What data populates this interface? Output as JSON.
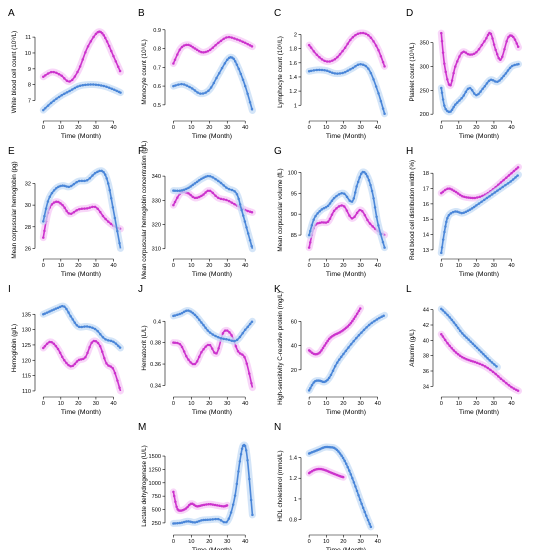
{
  "figure": {
    "colors": {
      "series_magenta": "#cc33cc",
      "series_blue": "#4a86d8",
      "band_magenta": "#f6c8f6",
      "band_blue": "#c5dcf6"
    }
  },
  "chart_data": [
    {
      "panel": "A",
      "type": "line",
      "ylabel": "White blood cell count (10⁹/L)",
      "xlabel": "Time (Month)",
      "xlim": [
        -3,
        46
      ],
      "ylim": [
        5.9,
        11.7
      ],
      "xticks": [
        0,
        10,
        20,
        30,
        40
      ],
      "yticks": [
        7,
        8,
        9,
        10,
        11
      ],
      "series": [
        {
          "color": "#cc33cc",
          "x": [
            0,
            5,
            10,
            15,
            20,
            25,
            30,
            33,
            36,
            40,
            44
          ],
          "y": [
            8.5,
            8.8,
            8.6,
            8.2,
            8.9,
            10.3,
            11.2,
            11.3,
            10.8,
            9.8,
            8.8
          ]
        },
        {
          "color": "#4a86d8",
          "x": [
            0,
            5,
            10,
            15,
            20,
            25,
            30,
            35,
            40,
            44
          ],
          "y": [
            6.4,
            6.9,
            7.3,
            7.6,
            7.9,
            8.0,
            8.0,
            7.9,
            7.7,
            7.5
          ]
        }
      ]
    },
    {
      "panel": "B",
      "type": "line",
      "ylabel": "Monocyte count (10⁹/L)",
      "xlabel": "Time (Month)",
      "xlim": [
        -3,
        46
      ],
      "ylim": [
        0.43,
        0.92
      ],
      "xticks": [
        0,
        10,
        20,
        30,
        40
      ],
      "yticks": [
        0.5,
        0.6,
        0.7,
        0.8,
        0.9
      ],
      "series": [
        {
          "color": "#cc33cc",
          "x": [
            0,
            4,
            8,
            12,
            16,
            20,
            25,
            30,
            35,
            40,
            44
          ],
          "y": [
            0.72,
            0.8,
            0.82,
            0.8,
            0.78,
            0.79,
            0.83,
            0.86,
            0.85,
            0.83,
            0.81
          ]
        },
        {
          "color": "#4a86d8",
          "x": [
            0,
            5,
            10,
            15,
            20,
            25,
            30,
            33,
            36,
            40,
            44
          ],
          "y": [
            0.6,
            0.61,
            0.59,
            0.56,
            0.58,
            0.66,
            0.74,
            0.75,
            0.7,
            0.6,
            0.47
          ]
        }
      ]
    },
    {
      "panel": "C",
      "type": "line",
      "ylabel": "Lymphocyte count (10⁹/L)",
      "xlabel": "Time (Month)",
      "xlim": [
        -3,
        46
      ],
      "ylim": [
        0.82,
        2.12
      ],
      "xticks": [
        0,
        10,
        20,
        30,
        40
      ],
      "yticks": [
        1.0,
        1.2,
        1.4,
        1.6,
        1.8,
        2.0
      ],
      "series": [
        {
          "color": "#cc33cc",
          "x": [
            0,
            5,
            10,
            15,
            20,
            25,
            30,
            35,
            40,
            44
          ],
          "y": [
            1.85,
            1.7,
            1.62,
            1.65,
            1.78,
            1.95,
            2.02,
            1.98,
            1.8,
            1.55
          ]
        },
        {
          "color": "#4a86d8",
          "x": [
            0,
            5,
            10,
            15,
            20,
            25,
            30,
            35,
            40,
            44
          ],
          "y": [
            1.48,
            1.5,
            1.49,
            1.45,
            1.46,
            1.52,
            1.58,
            1.5,
            1.2,
            0.88
          ]
        }
      ]
    },
    {
      "panel": "D",
      "type": "line",
      "ylabel": "Platelet count (10⁹/L)",
      "xlabel": "Time (Month)",
      "xlim": [
        -3,
        46
      ],
      "ylim": [
        192,
        385
      ],
      "xticks": [
        0,
        10,
        20,
        30,
        40
      ],
      "yticks": [
        200,
        250,
        300,
        350
      ],
      "series": [
        {
          "color": "#cc33cc",
          "x": [
            0,
            2,
            5,
            8,
            12,
            16,
            20,
            25,
            28,
            31,
            34,
            38,
            41,
            44
          ],
          "y": [
            370,
            300,
            260,
            300,
            330,
            325,
            330,
            355,
            370,
            335,
            315,
            360,
            362,
            340
          ]
        },
        {
          "color": "#4a86d8",
          "x": [
            0,
            2,
            5,
            8,
            12,
            16,
            20,
            24,
            28,
            32,
            36,
            40,
            44
          ],
          "y": [
            255,
            215,
            205,
            220,
            235,
            255,
            240,
            255,
            272,
            268,
            282,
            300,
            305
          ]
        }
      ]
    },
    {
      "panel": "E",
      "type": "line",
      "ylabel": "Mean corpuscular hemoglobin (pg)",
      "xlabel": "Time (Month)",
      "xlim": [
        -3,
        46
      ],
      "ylim": [
        25.3,
        33.8
      ],
      "xticks": [
        0,
        10,
        20,
        30,
        40
      ],
      "yticks": [
        26,
        28,
        30,
        32
      ],
      "series": [
        {
          "color": "#cc33cc",
          "x": [
            0,
            3,
            7,
            11,
            15,
            20,
            25,
            30,
            35,
            40,
            44
          ],
          "y": [
            27.0,
            29.5,
            30.3,
            30.0,
            29.2,
            29.6,
            29.7,
            29.8,
            28.8,
            28.1,
            27.8
          ]
        },
        {
          "color": "#4a86d8",
          "x": [
            0,
            3,
            7,
            11,
            15,
            20,
            25,
            30,
            34,
            37,
            40,
            44
          ],
          "y": [
            28.5,
            30.5,
            31.5,
            31.8,
            31.7,
            32.2,
            32.3,
            33.0,
            33.1,
            32.0,
            29.5,
            26.0
          ]
        }
      ]
    },
    {
      "panel": "F",
      "type": "line",
      "ylabel": "Mean corpuscular hemoglobin concentration (g/L)",
      "xlabel": "Time (Month)",
      "xlim": [
        -3,
        46
      ],
      "ylim": [
        307,
        345
      ],
      "xticks": [
        0,
        10,
        20,
        30,
        40
      ],
      "yticks": [
        310,
        320,
        330,
        340
      ],
      "series": [
        {
          "color": "#cc33cc",
          "x": [
            0,
            4,
            8,
            12,
            16,
            20,
            25,
            30,
            35,
            40,
            44
          ],
          "y": [
            328,
            333,
            333,
            331,
            332,
            334,
            331,
            330,
            328,
            326,
            325
          ]
        },
        {
          "color": "#4a86d8",
          "x": [
            0,
            4,
            8,
            12,
            16,
            20,
            25,
            30,
            35,
            38,
            41,
            44
          ],
          "y": [
            334,
            334,
            335,
            337,
            339,
            340,
            338,
            335,
            333,
            326,
            318,
            310
          ]
        }
      ]
    },
    {
      "panel": "G",
      "type": "line",
      "ylabel": "Mean corpuscular volume (fL)",
      "xlabel": "Time (Month)",
      "xlim": [
        -3,
        46
      ],
      "ylim": [
        80,
        102
      ],
      "xticks": [
        0,
        10,
        20,
        30,
        40
      ],
      "yticks": [
        85,
        90,
        95,
        100
      ],
      "series": [
        {
          "color": "#cc33cc",
          "x": [
            0,
            3,
            7,
            11,
            15,
            20,
            25,
            30,
            35,
            40,
            44
          ],
          "y": [
            82.0,
            87.0,
            88.0,
            88.2,
            91.0,
            92.0,
            89.0,
            91.0,
            88.0,
            86.0,
            85.0
          ]
        },
        {
          "color": "#4a86d8",
          "x": [
            0,
            3,
            7,
            11,
            15,
            20,
            25,
            28,
            31,
            34,
            37,
            40,
            44
          ],
          "y": [
            85.0,
            89.0,
            91.0,
            92.0,
            94.0,
            95.0,
            93.0,
            97.0,
            100.0,
            99.0,
            95.0,
            88.0,
            82.0
          ]
        }
      ]
    },
    {
      "panel": "H",
      "type": "line",
      "ylabel": "Red blood cell distribution width (%)",
      "xlabel": "Time (Month)",
      "xlim": [
        -3,
        46
      ],
      "ylim": [
        12.6,
        18.6
      ],
      "xticks": [
        0,
        10,
        20,
        30,
        40
      ],
      "yticks": [
        13,
        14,
        15,
        16,
        17,
        18
      ],
      "series": [
        {
          "color": "#cc33cc",
          "x": [
            0,
            4,
            8,
            12,
            16,
            20,
            25,
            30,
            35,
            40,
            44
          ],
          "y": [
            16.7,
            17.0,
            16.8,
            16.5,
            16.4,
            16.4,
            16.6,
            17.0,
            17.5,
            18.0,
            18.4
          ]
        },
        {
          "color": "#4a86d8",
          "x": [
            0,
            2,
            4,
            8,
            12,
            16,
            20,
            25,
            30,
            35,
            40,
            44
          ],
          "y": [
            12.8,
            14.3,
            15.2,
            15.5,
            15.4,
            15.6,
            15.9,
            16.3,
            16.7,
            17.1,
            17.5,
            17.9
          ]
        }
      ]
    },
    {
      "panel": "I",
      "type": "line",
      "ylabel": "Hemoglobin (g/L)",
      "xlabel": "Time (Month)",
      "xlim": [
        -3,
        46
      ],
      "ylim": [
        109,
        139
      ],
      "xticks": [
        0,
        10,
        20,
        30,
        40
      ],
      "yticks": [
        110,
        115,
        120,
        125,
        130,
        135
      ],
      "series": [
        {
          "color": "#cc33cc",
          "x": [
            0,
            4,
            8,
            12,
            16,
            20,
            24,
            28,
            32,
            36,
            40,
            44
          ],
          "y": [
            124.0,
            126.0,
            124.0,
            120.0,
            118.0,
            120.0,
            121.0,
            126.0,
            125.0,
            119.0,
            117.0,
            110.0
          ]
        },
        {
          "color": "#4a86d8",
          "x": [
            0,
            4,
            8,
            12,
            16,
            20,
            25,
            30,
            35,
            40,
            44
          ],
          "y": [
            135.0,
            136.0,
            137.0,
            137.5,
            134.0,
            131.0,
            131.0,
            130.0,
            127.0,
            126.0,
            124.0
          ]
        }
      ]
    },
    {
      "panel": "J",
      "type": "line",
      "ylabel": "Hematocrit (L/L)",
      "xlabel": "Time (Month)",
      "xlim": [
        -3,
        46
      ],
      "ylim": [
        0.332,
        0.418
      ],
      "xticks": [
        0,
        10,
        20,
        30,
        40
      ],
      "yticks": [
        0.34,
        0.36,
        0.38,
        0.4
      ],
      "series": [
        {
          "color": "#cc33cc",
          "x": [
            0,
            4,
            8,
            12,
            16,
            20,
            24,
            28,
            32,
            36,
            40,
            44
          ],
          "y": [
            0.38,
            0.378,
            0.365,
            0.36,
            0.372,
            0.378,
            0.37,
            0.39,
            0.388,
            0.372,
            0.365,
            0.338
          ]
        },
        {
          "color": "#4a86d8",
          "x": [
            0,
            4,
            8,
            12,
            16,
            20,
            25,
            30,
            35,
            40,
            44
          ],
          "y": [
            0.405,
            0.407,
            0.41,
            0.406,
            0.398,
            0.39,
            0.385,
            0.383,
            0.382,
            0.392,
            0.4
          ]
        }
      ]
    },
    {
      "panel": "K",
      "type": "line",
      "ylabel": "High-sensitivity C-reactive protein (mg/L)",
      "xlabel": "Time (Month)",
      "xlim": [
        -3,
        46
      ],
      "ylim": [
        0,
        76
      ],
      "xticks": [
        0,
        10,
        20,
        30,
        40
      ],
      "yticks": [
        20,
        40,
        60
      ],
      "series": [
        {
          "color": "#cc33cc",
          "x": [
            0,
            3,
            6,
            9,
            12,
            15,
            18,
            21,
            24,
            27,
            30
          ],
          "y": [
            36.0,
            33.0,
            34.0,
            40.0,
            46.0,
            49.0,
            51.0,
            54.0,
            58.0,
            64.0,
            71.0
          ]
        },
        {
          "color": "#4a86d8",
          "x": [
            0,
            3,
            6,
            9,
            12,
            16,
            20,
            25,
            30,
            35,
            40,
            44
          ],
          "y": [
            3.0,
            10.0,
            11.0,
            10.0,
            14.0,
            25.0,
            33.0,
            42.0,
            50.0,
            57.0,
            62.0,
            65.0
          ]
        }
      ]
    },
    {
      "panel": "L",
      "type": "line",
      "ylabel": "Albumin (g/L)",
      "xlabel": "Time (Month)",
      "xlim": [
        -3,
        46
      ],
      "ylim": [
        33.0,
        45.0
      ],
      "xticks": [
        0,
        10,
        20,
        30,
        40
      ],
      "yticks": [
        34,
        36,
        38,
        40,
        42,
        44
      ],
      "series": [
        {
          "color": "#cc33cc",
          "x": [
            0,
            4,
            8,
            12,
            16,
            20,
            25,
            30,
            35,
            40,
            44
          ],
          "y": [
            40.8,
            39.5,
            38.5,
            37.8,
            37.4,
            37.1,
            36.6,
            35.8,
            34.8,
            33.9,
            33.4
          ]
        },
        {
          "color": "#4a86d8",
          "x": [
            0,
            4,
            8,
            12,
            16,
            20,
            24,
            28,
            32
          ],
          "y": [
            44.1,
            43.2,
            42.1,
            40.9,
            40.0,
            39.1,
            38.2,
            37.3,
            36.5
          ]
        }
      ]
    },
    {
      "panel": "M",
      "type": "line",
      "ylabel": "Lactate dehydrogenase (U/L)",
      "xlabel": "Time (Month)",
      "xlim": [
        -3,
        46
      ],
      "ylim": [
        80,
        1800
      ],
      "xticks": [
        0,
        10,
        20,
        30,
        40
      ],
      "yticks": [
        250,
        500,
        750,
        1000,
        1250,
        1500
      ],
      "series": [
        {
          "color": "#cc33cc",
          "x": [
            0,
            2,
            4,
            7,
            10,
            13,
            16,
            20,
            24,
            28,
            30
          ],
          "y": [
            830,
            530,
            480,
            520,
            610,
            560,
            580,
            600,
            580,
            560,
            580
          ]
        },
        {
          "color": "#4a86d8",
          "x": [
            0,
            4,
            8,
            12,
            16,
            20,
            25,
            30,
            34,
            37,
            39,
            41,
            44
          ],
          "y": [
            240,
            250,
            280,
            260,
            300,
            310,
            320,
            280,
            700,
            1400,
            1700,
            1500,
            400
          ]
        }
      ]
    },
    {
      "panel": "N",
      "type": "line",
      "ylabel": "HDL cholesterol (mmol/L)",
      "xlabel": "Time (Month)",
      "xlim": [
        -3,
        46
      ],
      "ylim": [
        0.68,
        1.57
      ],
      "xticks": [
        0,
        10,
        20,
        30,
        40
      ],
      "yticks": [
        0.8,
        1.0,
        1.2,
        1.4
      ],
      "series": [
        {
          "color": "#cc33cc",
          "x": [
            0,
            3,
            6,
            9,
            12,
            15,
            18,
            20
          ],
          "y": [
            1.25,
            1.28,
            1.29,
            1.28,
            1.26,
            1.24,
            1.22,
            1.21
          ]
        },
        {
          "color": "#4a86d8",
          "x": [
            0,
            3,
            6,
            9,
            12,
            15,
            18,
            21,
            24,
            27,
            30,
            33,
            36
          ],
          "y": [
            1.44,
            1.46,
            1.48,
            1.5,
            1.5,
            1.49,
            1.44,
            1.36,
            1.25,
            1.12,
            0.98,
            0.85,
            0.73
          ]
        }
      ]
    }
  ]
}
